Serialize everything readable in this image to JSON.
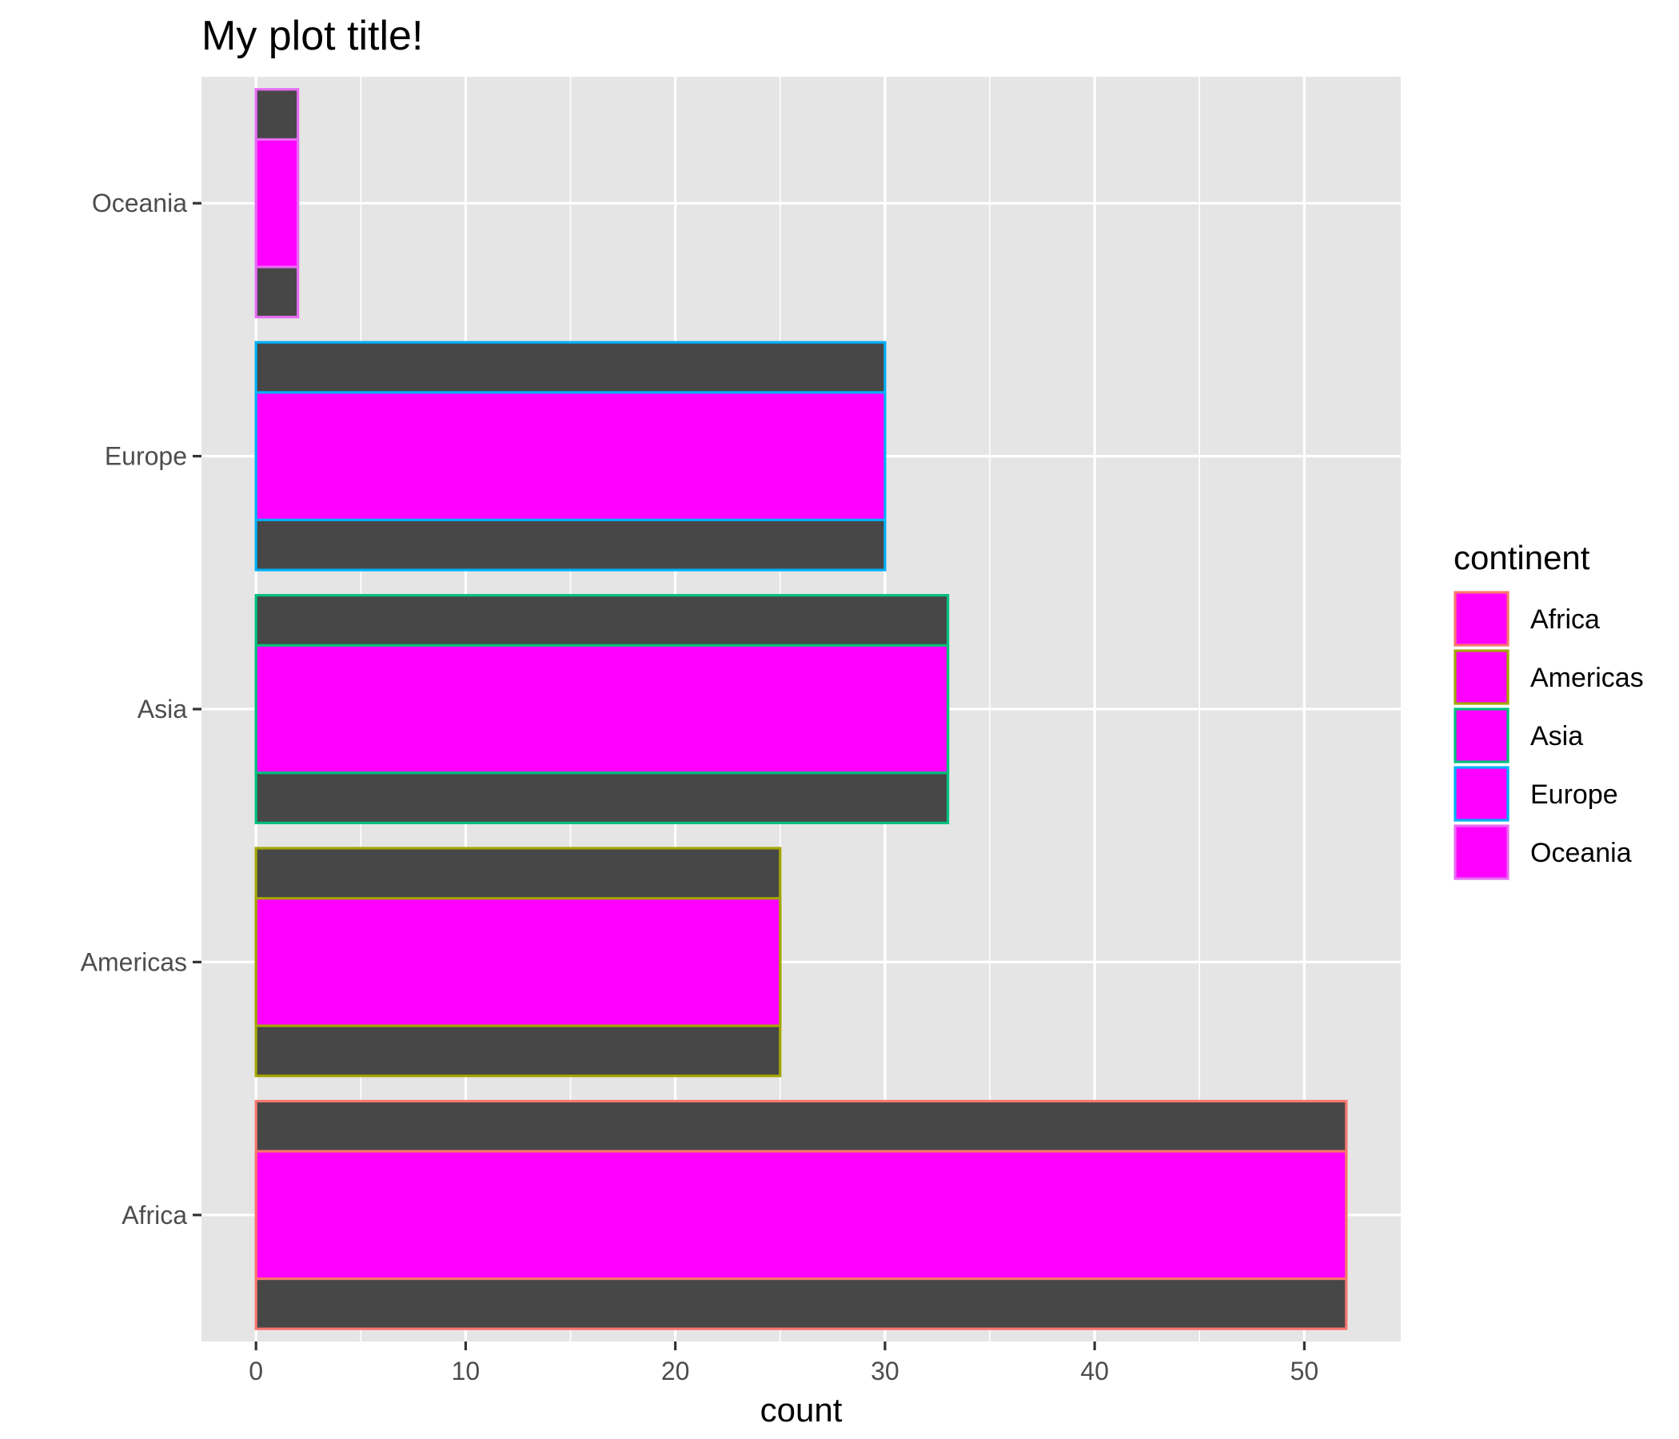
{
  "chart_data": {
    "type": "bar",
    "orientation": "horizontal",
    "title": "My plot title!",
    "xlabel": "count",
    "ylabel": "",
    "categories": [
      "Africa",
      "Americas",
      "Asia",
      "Europe",
      "Oceania"
    ],
    "values": [
      52,
      25,
      33,
      30,
      2
    ],
    "xlim": [
      -2.6,
      54.6
    ],
    "x_ticks": [
      0,
      10,
      20,
      30,
      40,
      50
    ],
    "x_tick_labels": [
      "0",
      "10",
      "20",
      "30",
      "40",
      "50"
    ],
    "grid": true,
    "panel_background": "#e5e5e5",
    "fill_color": "#ff00ff",
    "band_color": "#474747",
    "legend": {
      "title": "continent",
      "position": "right",
      "entries": [
        "Africa",
        "Americas",
        "Asia",
        "Europe",
        "Oceania"
      ]
    },
    "series_colors": {
      "Africa": "#f8766d",
      "Americas": "#a3a500",
      "Asia": "#00bf7d",
      "Europe": "#00b0f6",
      "Oceania": "#e76bf3"
    }
  }
}
